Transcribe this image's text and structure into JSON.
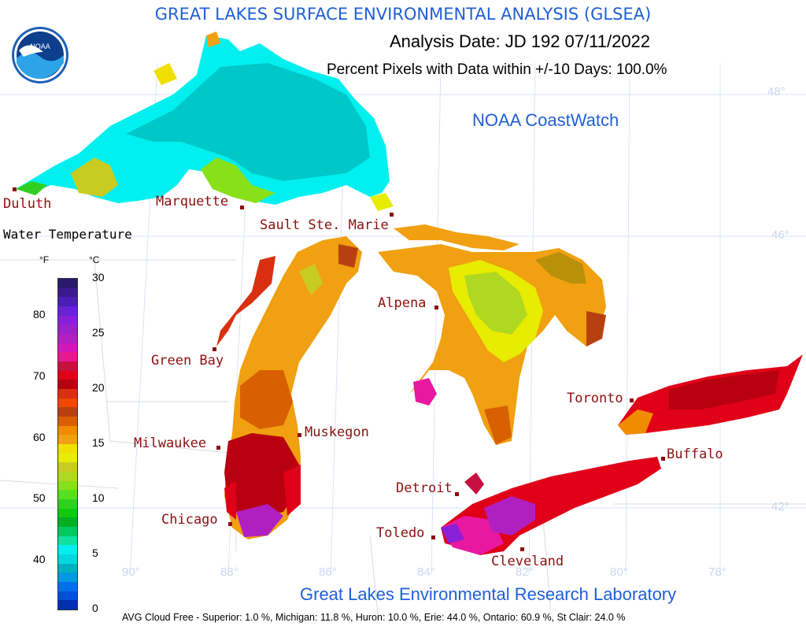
{
  "title": "GREAT LAKES SURFACE ENVIRONMENTAL ANALYSIS (GLSEA)",
  "analysis_date": "Analysis Date:  JD 192 07/11/2022",
  "percent_pixels": "Percent Pixels with Data within +/-10 Days: 100.0%",
  "coastwatch": "NOAA CoastWatch",
  "lab": "Great Lakes Environmental Research Laboratory",
  "cloud_free": "AVG Cloud Free - Superior:   1.0 %, Michigan:  11.8 %, Huron:  10.0 %, Erie: 44.0 %, Ontario: 60.9 %, St Clair: 24.0 %",
  "logo_text": "NOAA",
  "legend": {
    "title": "Water Temperature",
    "unit_f": "°F",
    "unit_c": "°C",
    "f_ticks": [
      "80",
      "70",
      "60",
      "50",
      "40"
    ],
    "c_ticks": [
      "30",
      "25",
      "20",
      "15",
      "10",
      "5",
      "0"
    ],
    "colors": [
      "#2a1a6e",
      "#3a1a8e",
      "#4b1fb5",
      "#6a22d8",
      "#8a1fd8",
      "#9a22c8",
      "#b020c0",
      "#d018b8",
      "#e81890",
      "#c81040",
      "#e00018",
      "#b80010",
      "#d83010",
      "#f04800",
      "#b84010",
      "#d86000",
      "#f08c00",
      "#f0a010",
      "#f0e000",
      "#e8ec00",
      "#c8cc20",
      "#b0d820",
      "#88e018",
      "#58e020",
      "#30d020",
      "#10c810",
      "#00b020",
      "#00c860",
      "#10e0a0",
      "#00f0f0",
      "#00d8e0",
      "#00b0c0",
      "#0098e0",
      "#0070e8",
      "#0050d8",
      "#0030b0"
    ]
  },
  "cities": {
    "duluth": "Duluth",
    "marquette": "Marquette",
    "sault": "Sault Ste. Marie",
    "green_bay": "Green Bay",
    "alpena": "Alpena",
    "toronto": "Toronto",
    "milwaukee": "Milwaukee",
    "muskegon": "Muskegon",
    "buffalo": "Buffalo",
    "detroit": "Detroit",
    "chicago": "Chicago",
    "toledo": "Toledo",
    "cleveland": "Cleveland"
  },
  "grid_labels": {
    "lat48": "48°",
    "lat46": "46°",
    "lat42": "42°",
    "lon90": "90°",
    "lon88": "88°",
    "lon86": "86°",
    "lon84": "84°",
    "lon82": "82°",
    "lon80": "80°",
    "lon78": "78°"
  }
}
